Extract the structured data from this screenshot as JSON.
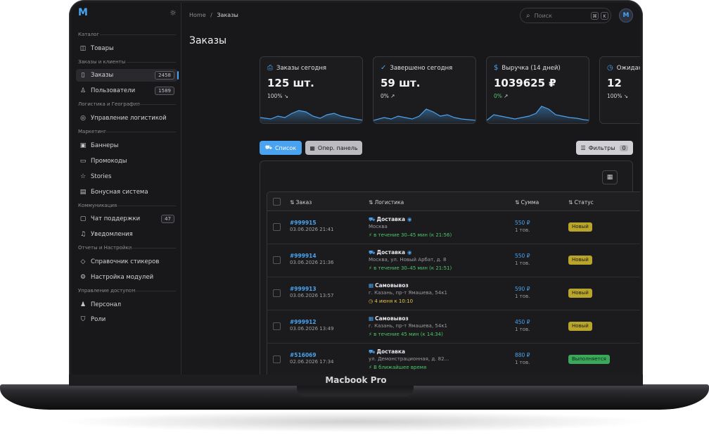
{
  "device_label": "Macbook Pro",
  "logo": "M",
  "sidebar": {
    "sections": [
      {
        "title": "Каталог",
        "items": [
          {
            "label": "Товары",
            "icon": "box-icon"
          }
        ]
      },
      {
        "title": "Заказы и клиенты",
        "items": [
          {
            "label": "Заказы",
            "icon": "document-icon",
            "badge": "2458",
            "active": true
          },
          {
            "label": "Пользователи",
            "icon": "user-icon",
            "badge": "1589"
          }
        ]
      },
      {
        "title": "Логистика и География",
        "items": [
          {
            "label": "Управление логистикой",
            "icon": "globe-icon"
          }
        ]
      },
      {
        "title": "Маркетинг",
        "items": [
          {
            "label": "Баннеры",
            "icon": "image-icon"
          },
          {
            "label": "Промокоды",
            "icon": "ticket-icon"
          },
          {
            "label": "Stories",
            "icon": "star-icon"
          },
          {
            "label": "Бонусная система",
            "icon": "bonus-icon"
          }
        ]
      },
      {
        "title": "Коммуникация",
        "items": [
          {
            "label": "Чат поддержки",
            "icon": "chat-icon",
            "badge": "47"
          },
          {
            "label": "Уведомления",
            "icon": "bell-icon"
          }
        ]
      },
      {
        "title": "Отчеты и Настройки",
        "items": [
          {
            "label": "Справочник стикеров",
            "icon": "tag-icon"
          },
          {
            "label": "Настройка модулей",
            "icon": "modules-icon"
          }
        ]
      },
      {
        "title": "Управление доступом",
        "items": [
          {
            "label": "Персонал",
            "icon": "staff-icon"
          },
          {
            "label": "Роли",
            "icon": "shield-icon"
          }
        ]
      }
    ]
  },
  "header": {
    "breadcrumb_home": "Home",
    "breadcrumb_sep": "/",
    "breadcrumb_current": "Заказы",
    "search_placeholder": "Поиск",
    "kbd_1": "⌘",
    "kbd_2": "K",
    "avatar": "M"
  },
  "page_title": "Заказы",
  "stats": [
    {
      "title": "Заказы сегодня",
      "value": "125 шт.",
      "change": "100%",
      "trend": "down",
      "icon": "bag-icon"
    },
    {
      "title": "Завершено сегодня",
      "value": "59 шт.",
      "change": "0%",
      "trend": "up",
      "icon": "check-circle-icon"
    },
    {
      "title": "Выручка (14 дней)",
      "value": "1039625 ₽",
      "change": "0%",
      "trend": "up",
      "icon": "dollar-icon"
    },
    {
      "title": "Ожидают (новые)",
      "value": "12",
      "change": "100%",
      "trend": "down",
      "icon": "clock-icon"
    }
  ],
  "toolbar": {
    "list_label": "Список",
    "panel_label": "Опер. панель",
    "filters_label": "Фильтры",
    "filters_count": "0"
  },
  "table": {
    "columns": {
      "order": "Заказ",
      "logistics": "Логистика",
      "sum": "Сумма",
      "status": "Статус"
    },
    "rows": [
      {
        "id": "#999915",
        "date": "03.06.2026 21:41",
        "type": "Доставка",
        "address": "Москва",
        "time": "в течение 30–45 мин (к 21:56)",
        "price": "550 ₽",
        "qty": "1 тов.",
        "status": "Новый",
        "status_kind": "new",
        "scheduled": false
      },
      {
        "id": "#999914",
        "date": "03.06.2026 21:36",
        "type": "Доставка",
        "address": "Москва, ул. Новый Арбат, д. 8",
        "time": "в течение 30–45 мин (к 21:51)",
        "price": "550 ₽",
        "qty": "1 тов.",
        "status": "Новый",
        "status_kind": "new",
        "scheduled": false
      },
      {
        "id": "#999913",
        "date": "03.06.2026 13:57",
        "type": "Самовывоз",
        "address": "г. Казань, пр-т Ямашева, 54к1",
        "time": "4 июня к 10:10",
        "price": "590 ₽",
        "qty": "1 тов.",
        "status": "Новый",
        "status_kind": "new",
        "scheduled": true
      },
      {
        "id": "#999912",
        "date": "03.06.2026 13:49",
        "type": "Самовывоз",
        "address": "г. Казань, пр-т Ямашева, 54к1",
        "time": "в течение 45 мин (к 14:34)",
        "price": "450 ₽",
        "qty": "1 тов.",
        "status": "Новый",
        "status_kind": "new",
        "scheduled": false
      },
      {
        "id": "#516069",
        "date": "02.06.2026 17:34",
        "type": "Доставка",
        "address": "ул. Демонстрационная, д. 82...",
        "time": "В ближайшее время",
        "price": "880 ₽",
        "qty": "1 тов.",
        "status": "Выполняется",
        "status_kind": "processing",
        "scheduled": false
      }
    ]
  },
  "colors": {
    "accent": "#4aa3f0",
    "status_new": "#b8a52a",
    "status_processing": "#3aa75a",
    "positive": "#4cc76a"
  }
}
